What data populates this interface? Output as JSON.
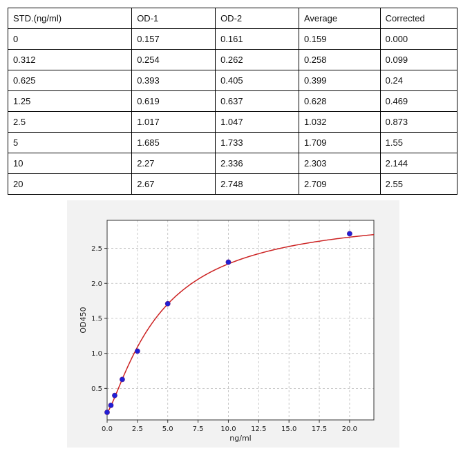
{
  "table": {
    "headers": [
      "STD.(ng/ml)",
      "OD-1",
      "OD-2",
      "Average",
      "Corrected"
    ],
    "rows": [
      [
        "0",
        "0.157",
        "0.161",
        "0.159",
        "0.000"
      ],
      [
        "0.312",
        "0.254",
        "0.262",
        "0.258",
        "0.099"
      ],
      [
        "0.625",
        "0.393",
        "0.405",
        "0.399",
        "0.24"
      ],
      [
        "1.25",
        "0.619",
        "0.637",
        "0.628",
        "0.469"
      ],
      [
        "2.5",
        "1.017",
        "1.047",
        "1.032",
        "0.873"
      ],
      [
        "5",
        "1.685",
        "1.733",
        "1.709",
        "1.55"
      ],
      [
        "10",
        "2.27",
        "2.336",
        "2.303",
        "2.144"
      ],
      [
        "20",
        "2.67",
        "2.748",
        "2.709",
        "2.55"
      ]
    ]
  },
  "chart_data": {
    "type": "scatter",
    "xlabel": "ng/ml",
    "ylabel": "OD450",
    "xlim": [
      0,
      22
    ],
    "ylim": [
      0.05,
      2.9
    ],
    "x_ticks": [
      "0.0",
      "2.5",
      "5.0",
      "7.5",
      "10.0",
      "12.5",
      "15.0",
      "17.5",
      "20.0"
    ],
    "y_ticks": [
      "0.5",
      "1.0",
      "1.5",
      "2.0",
      "2.5"
    ],
    "grid": true,
    "x": [
      0,
      0.312,
      0.625,
      1.25,
      2.5,
      5,
      10,
      20
    ],
    "y": [
      0.159,
      0.258,
      0.399,
      0.628,
      1.032,
      1.709,
      2.303,
      2.709
    ],
    "fit_curve": true,
    "colors": {
      "points": "#1f1fd6",
      "curve": "#cc2222",
      "grid": "#bbbbbb",
      "panel": "#f2f2f2"
    }
  }
}
